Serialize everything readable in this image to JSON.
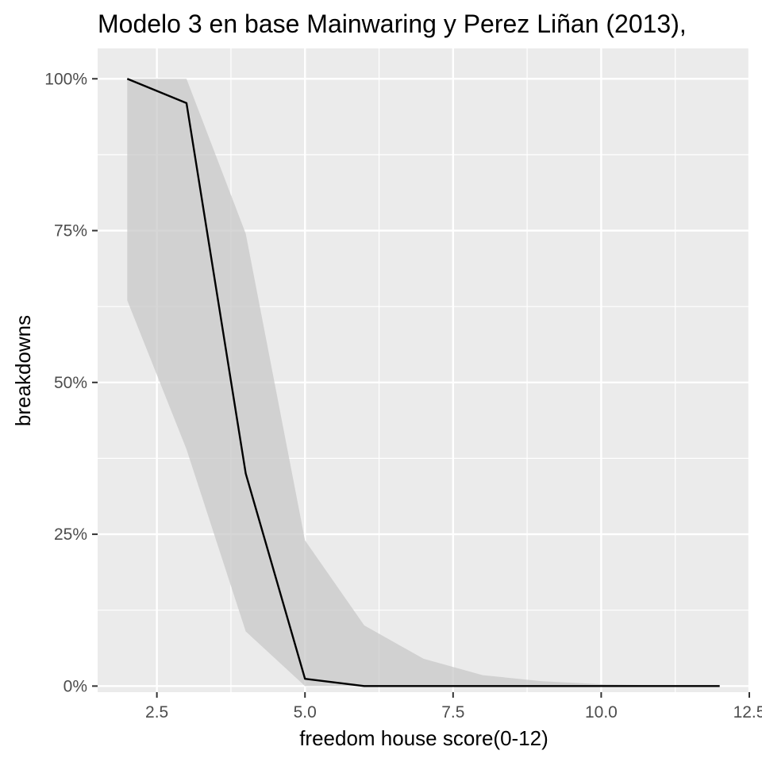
{
  "chart_data": {
    "type": "line",
    "title": "Modelo 3 en base Mainwaring y Perez Liñan (2013),",
    "xlabel": "freedom house score(0-12)",
    "ylabel": "breakdowns",
    "x_ticks": [
      2.5,
      5.0,
      7.5,
      10.0,
      12.5
    ],
    "x_tick_labels": [
      "2.5",
      "5.0",
      "7.5",
      "10.0",
      "12.5"
    ],
    "y_ticks": [
      0,
      0.25,
      0.5,
      0.75,
      1.0
    ],
    "y_tick_labels": [
      "0%",
      "25%",
      "50%",
      "75%",
      "100%"
    ],
    "xlim": [
      1.5,
      12.5
    ],
    "ylim": [
      -0.01,
      1.05
    ],
    "grid": true,
    "series": [
      {
        "x": [
          2,
          3,
          4,
          5,
          6,
          7,
          8,
          9,
          10,
          11,
          12
        ],
        "values": [
          1.0,
          0.96,
          0.35,
          0.012,
          0.0,
          0.0,
          0.0,
          0.0,
          0.0,
          0.0,
          0.0
        ],
        "lower": [
          0.635,
          0.39,
          0.09,
          0.0,
          0.0,
          0.0,
          0.0,
          0.0,
          0.0,
          0.0,
          0.0
        ],
        "upper": [
          1.0,
          1.0,
          0.745,
          0.24,
          0.1,
          0.045,
          0.018,
          0.008,
          0.003,
          0.001,
          0.0
        ],
        "line_color": "#000000",
        "ribbon_color": "#c8c8c8"
      }
    ],
    "panel_background": "#ebebeb",
    "grid_color": "#ffffff"
  }
}
